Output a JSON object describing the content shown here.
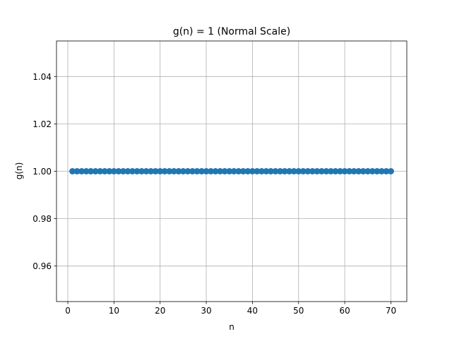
{
  "chart_data": {
    "type": "line",
    "title": "g(n) = 1 (Normal Scale)",
    "xlabel": "n",
    "ylabel": "g(n)",
    "xlim": [
      -2.45,
      73.45
    ],
    "ylim": [
      0.945,
      1.055
    ],
    "x_ticks": [
      0,
      10,
      20,
      30,
      40,
      50,
      60,
      70
    ],
    "y_ticks": [
      0.96,
      0.98,
      1.0,
      1.02,
      1.04
    ],
    "x_tick_labels": [
      "0",
      "10",
      "20",
      "30",
      "40",
      "50",
      "60",
      "70"
    ],
    "y_tick_labels": [
      "0.96",
      "0.98",
      "1.00",
      "1.02",
      "1.04"
    ],
    "grid": true,
    "series": [
      {
        "color": "#1f77b4",
        "marker": "circle",
        "x": [
          1,
          2,
          3,
          4,
          5,
          6,
          7,
          8,
          9,
          10,
          11,
          12,
          13,
          14,
          15,
          16,
          17,
          18,
          19,
          20,
          21,
          22,
          23,
          24,
          25,
          26,
          27,
          28,
          29,
          30,
          31,
          32,
          33,
          34,
          35,
          36,
          37,
          38,
          39,
          40,
          41,
          42,
          43,
          44,
          45,
          46,
          47,
          48,
          49,
          50,
          51,
          52,
          53,
          54,
          55,
          56,
          57,
          58,
          59,
          60,
          61,
          62,
          63,
          64,
          65,
          66,
          67,
          68,
          69,
          70
        ],
        "y": [
          1,
          1,
          1,
          1,
          1,
          1,
          1,
          1,
          1,
          1,
          1,
          1,
          1,
          1,
          1,
          1,
          1,
          1,
          1,
          1,
          1,
          1,
          1,
          1,
          1,
          1,
          1,
          1,
          1,
          1,
          1,
          1,
          1,
          1,
          1,
          1,
          1,
          1,
          1,
          1,
          1,
          1,
          1,
          1,
          1,
          1,
          1,
          1,
          1,
          1,
          1,
          1,
          1,
          1,
          1,
          1,
          1,
          1,
          1,
          1,
          1,
          1,
          1,
          1,
          1,
          1,
          1,
          1,
          1,
          1
        ]
      }
    ]
  }
}
